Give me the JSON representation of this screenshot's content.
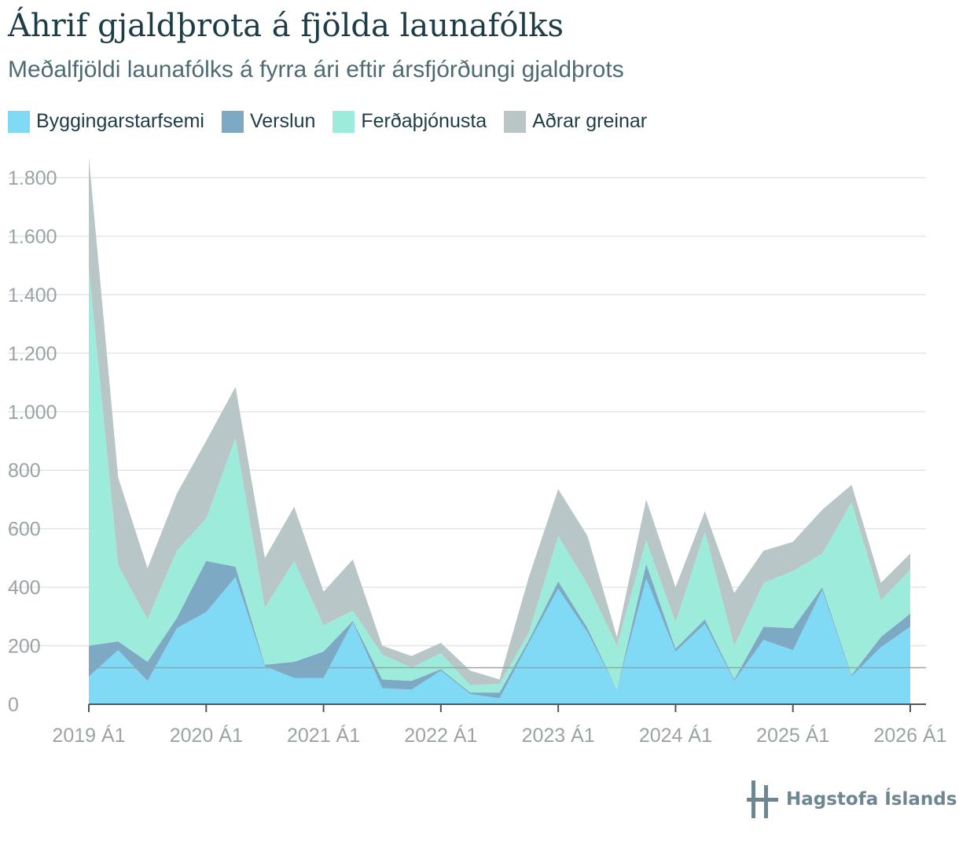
{
  "header": {
    "title": "Áhrif gjaldþrota á fjölda launafólks",
    "subtitle": "Meðalfjöldi launafólks á fyrra ári eftir ársfjórðungi gjaldþrots"
  },
  "brand": {
    "name": "Hagstofa Íslands",
    "icon": "hagstofa-logo-icon"
  },
  "colors": {
    "Byggingarstarfsemi": "#80d9f5",
    "Verslun": "#7ea9c4",
    "Ferðaþjónusta": "#9decdb",
    "Aðrar greinar": "#b8c6c8",
    "grid": "#e3e6e6",
    "axis": "#555555",
    "tick_label": "#9aa3a6"
  },
  "chart_data": {
    "type": "area",
    "stacked": true,
    "title": "Áhrif gjaldþrota á fjölda launafólks",
    "subtitle": "Meðalfjöldi launafólks á fyrra ári eftir ársfjórðungi gjaldþrots",
    "xlabel": "",
    "ylabel": "",
    "ylim": [
      0,
      1800
    ],
    "yticks": [
      0,
      200,
      400,
      600,
      800,
      1000,
      1200,
      1400,
      1600,
      1800
    ],
    "ytick_labels": [
      "0",
      "200",
      "400",
      "600",
      "800",
      "1.000",
      "1.200",
      "1.400",
      "1.600",
      "1.800"
    ],
    "xtick_labels": [
      "2019 Á1",
      "2020 Á1",
      "2021 Á1",
      "2022 Á1",
      "2023 Á1",
      "2024 Á1",
      "2025 Á1",
      "2026 Á1"
    ],
    "grid": true,
    "legend": "top-left",
    "reference_line": 125,
    "x": [
      "2019 Á1",
      "2019 Á2",
      "2019 Á3",
      "2019 Á4",
      "2020 Á1",
      "2020 Á2",
      "2020 Á3",
      "2020 Á4",
      "2021 Á1",
      "2021 Á2",
      "2021 Á3",
      "2021 Á4",
      "2022 Á1",
      "2022 Á2",
      "2022 Á3",
      "2022 Á4",
      "2023 Á1",
      "2023 Á2",
      "2023 Á3",
      "2023 Á4",
      "2024 Á1",
      "2024 Á2",
      "2024 Á3",
      "2024 Á4",
      "2025 Á1",
      "2025 Á2",
      "2025 Á3",
      "2025 Á4",
      "2026 Á1"
    ],
    "series": [
      {
        "name": "Byggingarstarfsemi",
        "values": [
          95,
          185,
          80,
          260,
          315,
          435,
          130,
          90,
          90,
          280,
          55,
          50,
          115,
          35,
          20,
          210,
          395,
          245,
          50,
          430,
          180,
          275,
          80,
          220,
          185,
          390,
          95,
          195,
          265
        ]
      },
      {
        "name": "Verslun",
        "values": [
          105,
          30,
          65,
          35,
          175,
          35,
          5,
          55,
          90,
          5,
          30,
          30,
          5,
          5,
          20,
          10,
          25,
          15,
          0,
          50,
          10,
          15,
          5,
          45,
          75,
          10,
          5,
          35,
          45
        ]
      },
      {
        "name": "Ferðaþjónusta",
        "values": [
          1290,
          260,
          145,
          230,
          145,
          440,
          195,
          345,
          90,
          35,
          85,
          45,
          55,
          25,
          30,
          25,
          155,
          150,
          150,
          80,
          90,
          300,
          115,
          150,
          195,
          115,
          590,
          125,
          150
        ]
      },
      {
        "name": "Aðrar greinar",
        "values": [
          380,
          300,
          175,
          195,
          265,
          175,
          170,
          185,
          115,
          175,
          30,
          40,
          35,
          50,
          15,
          190,
          160,
          165,
          30,
          140,
          120,
          70,
          180,
          110,
          100,
          150,
          60,
          60,
          55
        ]
      }
    ]
  }
}
